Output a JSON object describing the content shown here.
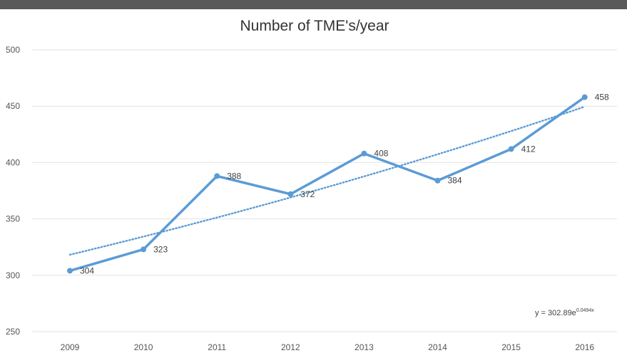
{
  "chart_data": {
    "type": "line",
    "title": "Number of TME's/year",
    "xlabel": "",
    "ylabel": "",
    "categories": [
      "2009",
      "2010",
      "2011",
      "2012",
      "2013",
      "2014",
      "2015",
      "2016"
    ],
    "series": [
      {
        "values": [
          304,
          323,
          388,
          372,
          408,
          384,
          412,
          458
        ],
        "color": "#5b9bd5",
        "data_labels": [
          "304",
          "323",
          "388",
          "372",
          "408",
          "384",
          "412",
          "458"
        ]
      }
    ],
    "trendline": {
      "type": "exponential",
      "style": "dotted",
      "color": "#5b9bd5",
      "equation_base": "y = 302.89e",
      "equation_exponent": "0.0494x"
    },
    "ylim": [
      250,
      500
    ],
    "yticks": [
      "250",
      "300",
      "350",
      "400",
      "450",
      "500"
    ],
    "grid": true,
    "legend": "none"
  }
}
